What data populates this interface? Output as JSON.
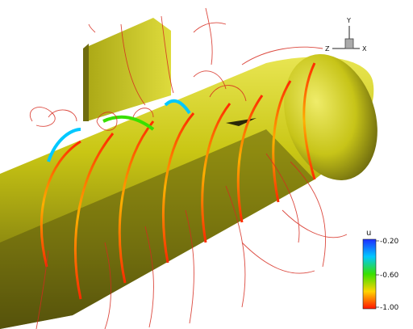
{
  "axis_triad": {
    "y_label": "Y",
    "z_label": "Z",
    "x_label": "X"
  },
  "colorbar": {
    "title": "u",
    "ticks": [
      "-0.20",
      "-0.60",
      "-1.00"
    ],
    "colors": {
      "top": "#1e2dff",
      "upper": "#00c8ff",
      "middle": "#38e000",
      "lower": "#ffd400",
      "bottom": "#ff1400"
    }
  },
  "scene": {
    "body_color": "#c9c614",
    "shadow_color": "#4d4a0c",
    "contour_color": "#d62a1e"
  }
}
